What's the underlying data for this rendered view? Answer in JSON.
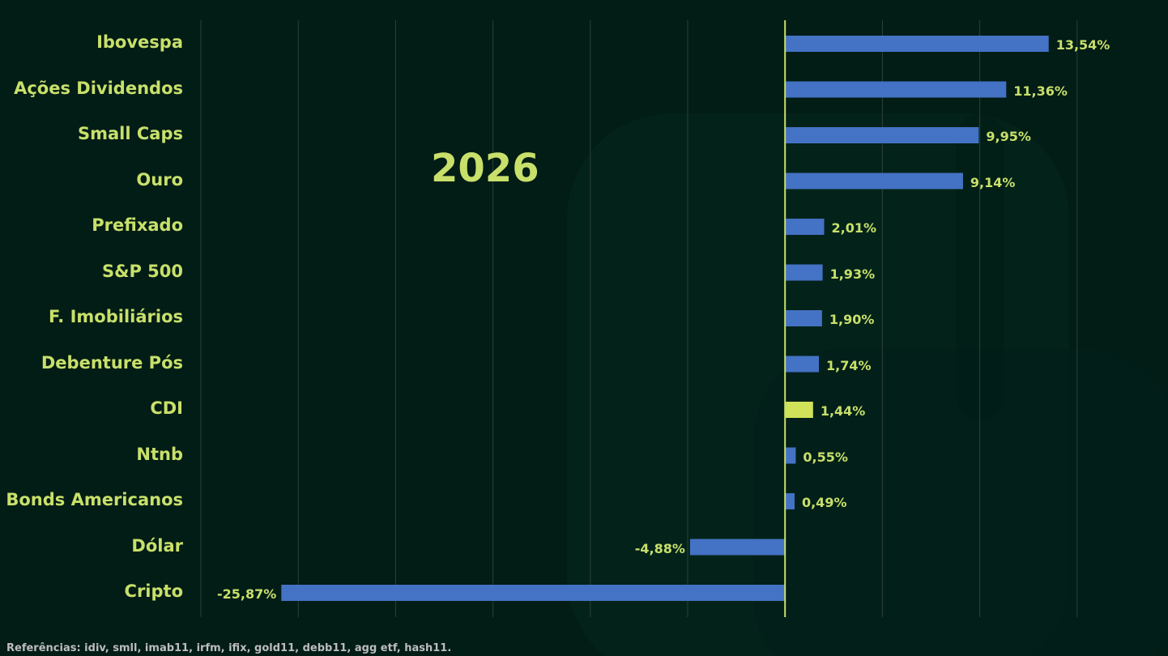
{
  "year_text": "2026",
  "footer": "Referências: idiv, smll, imab11, irfm, ifix, gold11, debb11, agg etf, hash11.",
  "colors": {
    "background": "#021c16",
    "bar": "#4472c4",
    "highlight_bar": "#d0e25a",
    "text": "#c8e06a",
    "grid": "#2d4038",
    "zero_line": "#c8e06a"
  },
  "chart_data": {
    "type": "bar",
    "orientation": "horizontal",
    "xlim": [
      -30,
      20
    ],
    "grid": true,
    "categories": [
      "Ibovespa",
      "Ações Dividendos",
      "Small Caps",
      "Ouro",
      "Prefixado",
      "S&P 500",
      "F. Imobiliários",
      "Debenture Pós",
      "CDI",
      "Ntnb",
      "Bonds Americanos",
      "Dólar",
      "Cripto"
    ],
    "values": [
      13.54,
      11.36,
      9.95,
      9.14,
      2.01,
      1.93,
      1.9,
      1.74,
      1.44,
      0.55,
      0.49,
      -4.88,
      -25.87
    ],
    "value_labels": [
      "13,54%",
      "11,36%",
      "9,95%",
      "9,14%",
      "2,01%",
      "1,93%",
      "1,90%",
      "1,74%",
      "1,44%",
      "0,55%",
      "0,49%",
      "-4,88%",
      "-25,87%"
    ],
    "highlight": "CDI"
  }
}
